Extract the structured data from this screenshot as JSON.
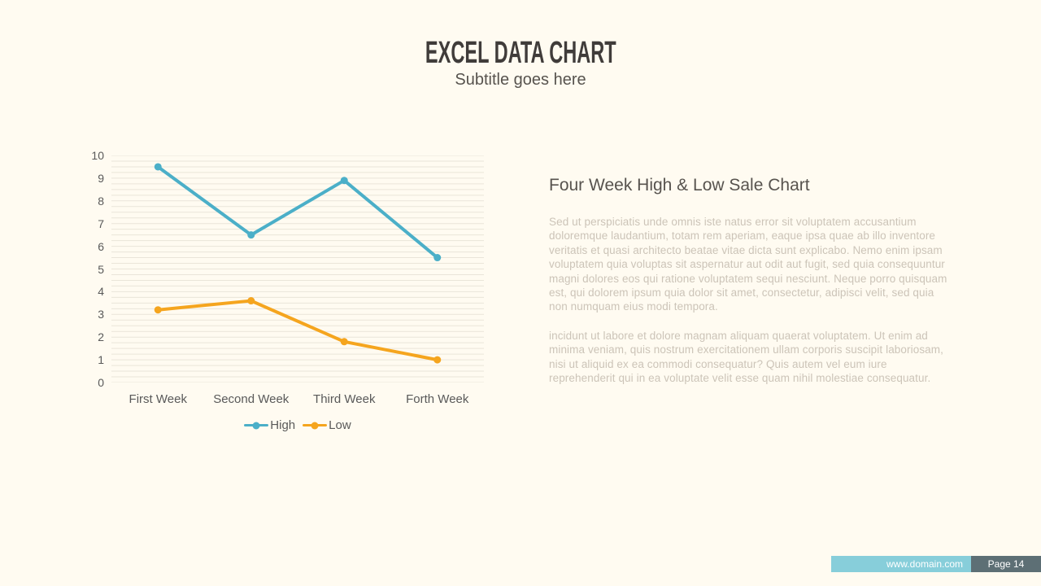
{
  "slide": {
    "title": "EXCEL DATA CHART",
    "subtitle": "Subtitle goes here"
  },
  "chart_data": {
    "type": "line",
    "categories": [
      "First Week",
      "Second Week",
      "Third Week",
      "Forth Week"
    ],
    "series": [
      {
        "name": "High",
        "values": [
          9.5,
          6.5,
          8.9,
          5.5
        ],
        "color": "#4BAFC8"
      },
      {
        "name": "Low",
        "values": [
          3.2,
          3.6,
          1.8,
          1.0
        ],
        "color": "#F5A51E"
      }
    ],
    "title": "",
    "xlabel": "",
    "ylabel": "",
    "ylim": [
      0,
      10
    ],
    "y_tick_step": 1,
    "minor_gridline_step": 0.25,
    "gridline_color": "#EAE5D9",
    "grid": true,
    "legend_position": "bottom"
  },
  "content": {
    "heading": "Four Week High & Low Sale Chart",
    "paragraphs": [
      "Sed ut perspiciatis unde omnis iste natus error sit voluptatem accusantium doloremque laudantium, totam rem aperiam, eaque ipsa quae ab illo inventore veritatis et quasi architecto beatae vitae dicta sunt explicabo. Nemo enim ipsam voluptatem quia voluptas sit aspernatur aut odit aut fugit, sed quia consequuntur magni dolores eos qui ratione voluptatem sequi nesciunt. Neque porro quisquam est, qui dolorem ipsum quia dolor sit amet, consectetur, adipisci velit, sed quia non numquam eius modi tempora.",
      "incidunt ut labore et dolore magnam aliquam quaerat voluptatem. Ut enim ad minima veniam, quis nostrum exercitationem ullam corporis suscipit laboriosam, nisi ut aliquid ex ea commodi consequatur? Quis autem vel eum iure reprehenderit qui in ea voluptate velit esse quam nihil molestiae consequatur."
    ]
  },
  "footer": {
    "domain": "www.domain.com",
    "page": "Page 14"
  },
  "colors": {
    "background": "#FFFBF1",
    "title": "#403C3A",
    "subtitle": "#57534E",
    "heading": "#57534E",
    "body_text": "#CCC4B8",
    "axis_text": "#595959",
    "footer_teal": "#87CEDA",
    "footer_slate": "#5D6F75",
    "footer_text": "#FFFFFF"
  }
}
